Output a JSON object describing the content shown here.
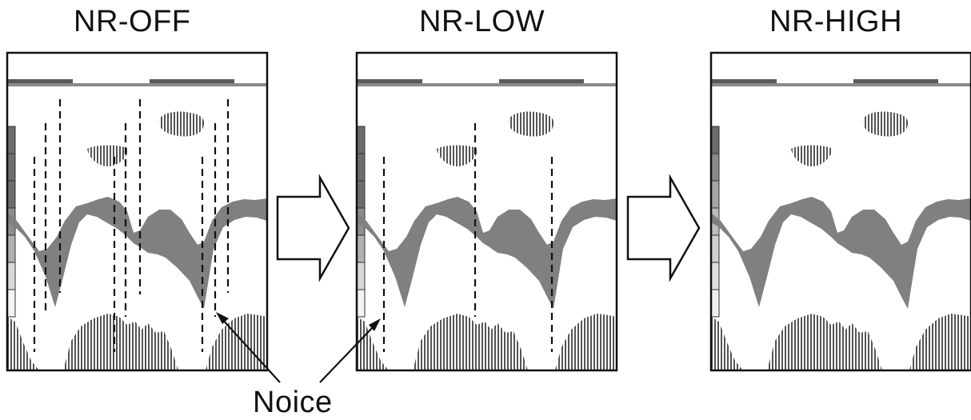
{
  "panels": [
    {
      "title": "NR-OFF"
    },
    {
      "title": "NR-LOW"
    },
    {
      "title": "NR-HIGH"
    }
  ],
  "annotation": {
    "label": "Noice"
  },
  "colors": {
    "band": "#808080",
    "frame": "#111111",
    "hatch": "#555555",
    "depth_bar": "#5a5a5a",
    "scale_dark": "#6d6d6d",
    "scale_mid": "#9a9a9a",
    "scale_light": "#d6d6d6"
  }
}
